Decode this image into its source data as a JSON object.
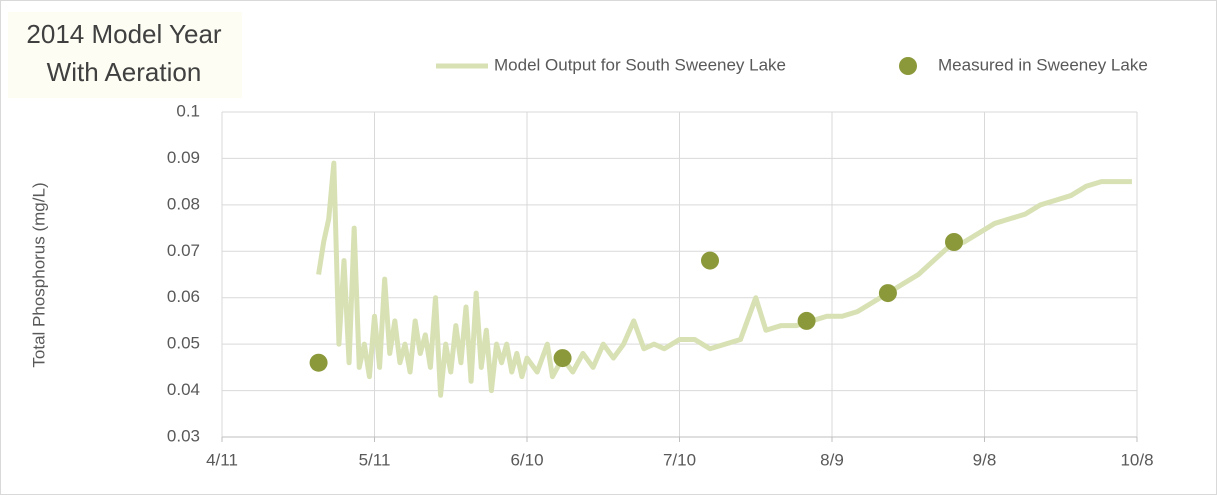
{
  "chart_data": {
    "type": "line",
    "title": [
      "2014 Model Year",
      "With Aeration"
    ],
    "y_label": "Total Phosphorus (mg/L)",
    "xlim": [
      "4/11",
      "10/8"
    ],
    "xticks": [
      "4/11",
      "5/11",
      "6/10",
      "7/10",
      "8/9",
      "9/8",
      "10/8"
    ],
    "ylim": [
      0.03,
      0.1
    ],
    "yticks": [
      0.03,
      0.04,
      0.05,
      0.06,
      0.07,
      0.08,
      0.09,
      0.1
    ],
    "grid": true,
    "legend": "top",
    "series": [
      {
        "name": "Model Output for South Sweeney Lake",
        "type": "line",
        "color": "#d7e1b4",
        "x": [
          "4/30",
          "5/1",
          "5/2",
          "5/3",
          "5/4",
          "5/5",
          "5/6",
          "5/7",
          "5/8",
          "5/9",
          "5/10",
          "5/11",
          "5/12",
          "5/13",
          "5/14",
          "5/15",
          "5/16",
          "5/17",
          "5/18",
          "5/19",
          "5/20",
          "5/21",
          "5/22",
          "5/23",
          "5/24",
          "5/25",
          "5/26",
          "5/27",
          "5/28",
          "5/29",
          "5/30",
          "5/31",
          "6/1",
          "6/2",
          "6/3",
          "6/4",
          "6/5",
          "6/6",
          "6/7",
          "6/8",
          "6/9",
          "6/10",
          "6/12",
          "6/14",
          "6/15",
          "6/17",
          "6/19",
          "6/21",
          "6/23",
          "6/25",
          "6/27",
          "6/29",
          "7/1",
          "7/3",
          "7/5",
          "7/7",
          "7/10",
          "7/13",
          "7/16",
          "7/19",
          "7/22",
          "7/25",
          "7/27",
          "7/30",
          "8/2",
          "8/5",
          "8/8",
          "8/11",
          "8/14",
          "8/17",
          "8/20",
          "8/23",
          "8/26",
          "8/29",
          "9/1",
          "9/4",
          "9/7",
          "9/10",
          "9/13",
          "9/16",
          "9/19",
          "9/22",
          "9/25",
          "9/28",
          "10/1",
          "10/4",
          "10/7"
        ],
        "values": [
          0.065,
          0.072,
          0.077,
          0.089,
          0.05,
          0.068,
          0.046,
          0.075,
          0.045,
          0.05,
          0.043,
          0.056,
          0.045,
          0.064,
          0.048,
          0.055,
          0.046,
          0.05,
          0.044,
          0.055,
          0.048,
          0.052,
          0.045,
          0.06,
          0.039,
          0.05,
          0.044,
          0.054,
          0.046,
          0.058,
          0.042,
          0.061,
          0.045,
          0.053,
          0.04,
          0.05,
          0.046,
          0.05,
          0.044,
          0.048,
          0.043,
          0.047,
          0.044,
          0.05,
          0.043,
          0.047,
          0.044,
          0.048,
          0.045,
          0.05,
          0.047,
          0.05,
          0.055,
          0.049,
          0.05,
          0.049,
          0.051,
          0.051,
          0.049,
          0.05,
          0.051,
          0.06,
          0.053,
          0.054,
          0.054,
          0.055,
          0.056,
          0.056,
          0.057,
          0.059,
          0.061,
          0.063,
          0.065,
          0.068,
          0.071,
          0.072,
          0.074,
          0.076,
          0.077,
          0.078,
          0.08,
          0.081,
          0.082,
          0.084,
          0.085,
          0.085,
          0.085
        ]
      },
      {
        "name": "Measured in Sweeney Lake",
        "type": "scatter",
        "color": "#8c993b",
        "x": [
          "4/30",
          "6/17",
          "7/16",
          "8/4",
          "8/20",
          "9/2"
        ],
        "values": [
          0.046,
          0.047,
          0.068,
          0.055,
          0.061,
          0.072
        ]
      }
    ]
  }
}
